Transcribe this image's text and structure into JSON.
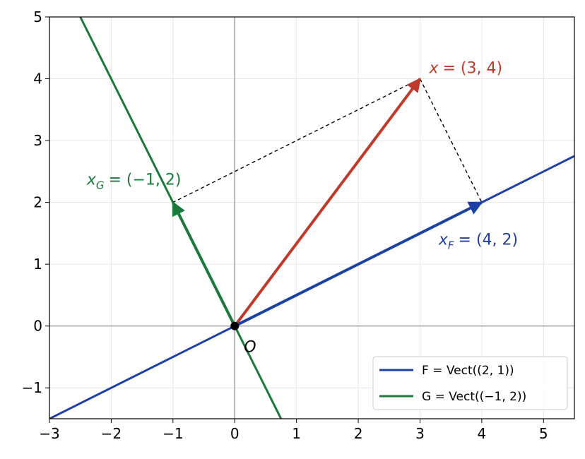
{
  "chart_data": {
    "type": "vector_plot",
    "xlim": [
      -3,
      5.5
    ],
    "ylim": [
      -1.5,
      5
    ],
    "xticks": [
      {
        "value": -3,
        "label": "−3"
      },
      {
        "value": -2,
        "label": "−2"
      },
      {
        "value": -1,
        "label": "−1"
      },
      0,
      1,
      2,
      3,
      4,
      5
    ],
    "yticks": [
      {
        "value": -1,
        "label": "−1"
      },
      0,
      1,
      2,
      3,
      4,
      5
    ],
    "grid": true,
    "legend_position": "lower right",
    "series": [
      {
        "name": "F = Vect((2, 1))",
        "color": "#1f3fa8",
        "x": [
          -3,
          5.5
        ],
        "values": [
          -1.5,
          2.75
        ]
      },
      {
        "name": "G = Vect((−1, 2))",
        "color": "#1a7a3a",
        "x": [
          -2.5,
          0.75
        ],
        "values": [
          5,
          -1.5
        ]
      }
    ],
    "vectors": [
      {
        "x": 3,
        "y": 4,
        "color": "#c0392b",
        "symbol": "x",
        "text": "= (3, 4)"
      },
      {
        "x": 4,
        "y": 2,
        "color": "#1f3fa8",
        "symbol": "x",
        "subscript": "F",
        "text": "= (4, 2)"
      },
      {
        "x": -1,
        "y": 2,
        "color": "#1a7a3a",
        "symbol": "x",
        "subscript": "G",
        "text": "= (−1, 2)"
      }
    ],
    "origin": {
      "x": 0,
      "y": 0,
      "label": "O"
    }
  }
}
